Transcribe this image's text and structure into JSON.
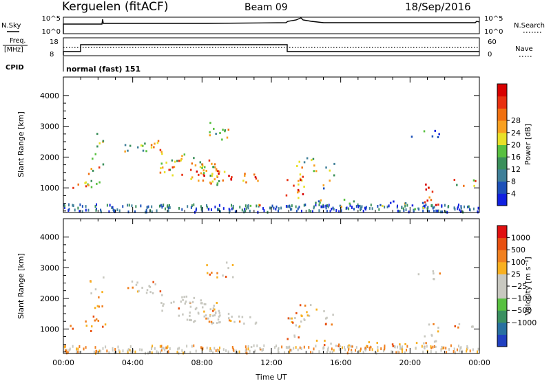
{
  "header": {
    "station": "Kerguelen (fitACF)",
    "beam": "Beam 09",
    "date": "18/Sep/2016"
  },
  "panels": {
    "nsky": {
      "label": "N.Sky",
      "ytop": "10^5",
      "ybot": "10^0",
      "right_label": "N.Search",
      "right_top": "10^5",
      "right_bot": "10^0"
    },
    "freq": {
      "label_line1": "Freq.",
      "label_line2": "[MHz]",
      "ytop": "18",
      "ybot": "8",
      "right_label": "Nave",
      "right_top": "60",
      "right_bot": "0"
    },
    "cpid": {
      "label": "CPID",
      "text": "normal (fast) 151"
    }
  },
  "chart_data": [
    {
      "type": "heatmap",
      "name": "power",
      "ylabel": "Slant Range [km]",
      "xlabel": "",
      "yticks": [
        "1000",
        "2000",
        "3000",
        "4000"
      ],
      "ylim": [
        200,
        4600
      ],
      "xlim": [
        0,
        24
      ],
      "colorbar": {
        "label": "Power [dB]",
        "ticks": [
          "4",
          "8",
          "12",
          "16",
          "20",
          "24",
          "28"
        ],
        "colors": [
          "#1020e0",
          "#1c50b8",
          "#3f7f98",
          "#3a8f5a",
          "#58c040",
          "#e8e028",
          "#f8a020",
          "#f07010",
          "#e83010",
          "#d80000"
        ]
      }
    },
    {
      "type": "heatmap",
      "name": "velocity",
      "ylabel": "Slant Range [km]",
      "xlabel": "Time UT",
      "xticks": [
        "00:00",
        "04:00",
        "08:00",
        "12:00",
        "16:00",
        "20:00",
        "00:00"
      ],
      "yticks": [
        "1000",
        "2000",
        "3000",
        "4000"
      ],
      "ylim": [
        200,
        4600
      ],
      "xlim": [
        0,
        24
      ],
      "colorbar": {
        "label": "Velocity [m s⁻¹]",
        "ticks": [
          "1000",
          "500",
          "100",
          "25",
          "−25",
          "−100",
          "−500",
          "−1000"
        ],
        "colors": [
          "#2040c0",
          "#2870a0",
          "#3a9060",
          "#58c040",
          "#c8c8c0",
          "#c8c8c0",
          "#f8b020",
          "#f08020",
          "#e85010",
          "#e01010"
        ]
      }
    }
  ]
}
